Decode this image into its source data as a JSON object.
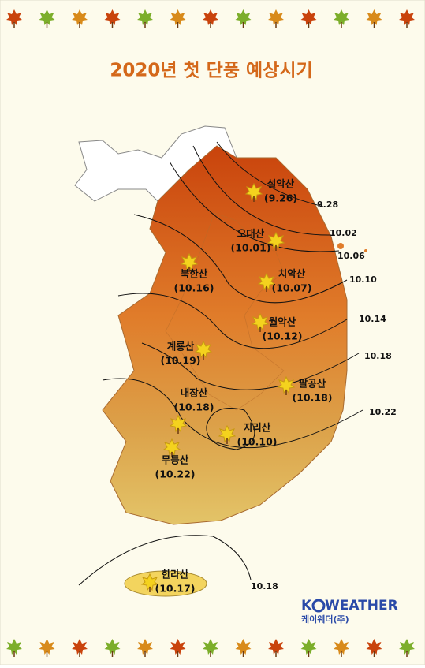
{
  "header": {
    "title": "2020년 첫 단풍 예상시기"
  },
  "mountains": [
    {
      "name": "설악산",
      "date": "(9.26)"
    },
    {
      "name": "오대산",
      "date": "(10.01)"
    },
    {
      "name": "치악산",
      "date": "(10.07)"
    },
    {
      "name": "북한산",
      "date": "(10.16)"
    },
    {
      "name": "월악산",
      "date": "(10.12)"
    },
    {
      "name": "계룡산",
      "date": "(10.19)"
    },
    {
      "name": "팔공산",
      "date": "(10.18)"
    },
    {
      "name": "내장산",
      "date": "(10.18)"
    },
    {
      "name": "지리산",
      "date": "(10.10)"
    },
    {
      "name": "무등산",
      "date": "(10.22)"
    },
    {
      "name": "한라산",
      "date": "(10.17)"
    }
  ],
  "isolines": [
    "9.28",
    "10.02",
    "10.06",
    "10.10",
    "10.14",
    "10.18",
    "10.22",
    "10.18"
  ],
  "logo": {
    "brand_start": "K",
    "brand_end": "WEATHER",
    "company": "케이웨더(주)"
  }
}
